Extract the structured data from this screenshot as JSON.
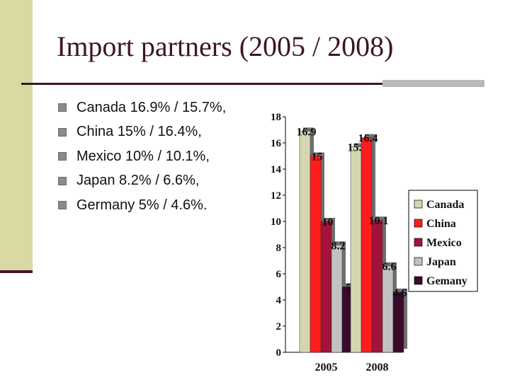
{
  "slide": {
    "title": "Import partners (2005 / 2008)",
    "bullets": [
      "Canada 16.9% / 15.7%,",
      "China 15% / 16.4%,",
      "Mexico 10% / 10.1%,",
      "Japan 8.2% / 6.6%,",
      "Germany 5% / 4.6%."
    ]
  },
  "colors": {
    "title": "#3d1626",
    "sidebar": "#d9d9a3",
    "accent": "#4b1131"
  },
  "chart_data": {
    "type": "bar",
    "categories": [
      "2005",
      "2008"
    ],
    "series": [
      {
        "name": "Canada",
        "values": [
          16.9,
          15.7
        ],
        "labels": [
          "16.9",
          "15.7"
        ],
        "color": "#d6d6b0"
      },
      {
        "name": "China",
        "values": [
          15,
          16.4
        ],
        "labels": [
          "15",
          "16.4"
        ],
        "color": "#ff1c1c"
      },
      {
        "name": "Mexico",
        "values": [
          10,
          10.1
        ],
        "labels": [
          "10",
          "10.1"
        ],
        "color": "#a3123a"
      },
      {
        "name": "Japan",
        "values": [
          8.2,
          6.6
        ],
        "labels": [
          "8.2",
          "6.6"
        ],
        "color": "#c2c2c2"
      },
      {
        "name": "Gemany",
        "values": [
          5,
          4.6
        ],
        "labels": [
          "5",
          "4.6"
        ],
        "color": "#3a0a2a"
      }
    ],
    "ylim": [
      0,
      18
    ],
    "yticks": [
      "0",
      "2",
      "4",
      "6",
      "8",
      "10",
      "12",
      "14",
      "16",
      "18"
    ],
    "grid": false,
    "legend": "right",
    "xlabel": "",
    "ylabel": ""
  }
}
